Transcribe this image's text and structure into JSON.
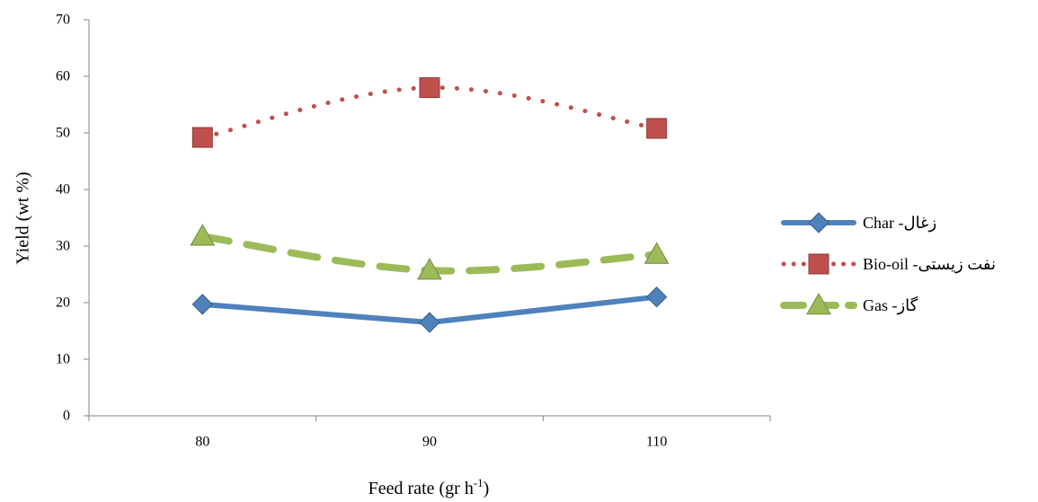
{
  "chart_data": {
    "type": "line",
    "categories": [
      "80",
      "90",
      "110"
    ],
    "xlabel_main": "Feed rate (gr h",
    "xlabel_sup": "-1",
    "xlabel_close": ")",
    "ylabel": "Yield (wt %)",
    "ylim": [
      0,
      70
    ],
    "yticks": [
      "0",
      "10",
      "20",
      "30",
      "40",
      "50",
      "60",
      "70"
    ],
    "grid": false,
    "legend_position": "right",
    "series": [
      {
        "name": "زغال- Char",
        "values": [
          19.7,
          16.5,
          21.0
        ],
        "color": "#4f81bd",
        "line_style": "solid",
        "marker": "diamond"
      },
      {
        "name": "نفت زیستی- Bio-oil",
        "values": [
          49.2,
          58.0,
          50.8
        ],
        "color": "#c0504d",
        "line_style": "dotted",
        "marker": "square"
      },
      {
        "name": "گاز- Gas",
        "values": [
          31.7,
          25.7,
          28.5
        ],
        "color": "#9bbb59",
        "line_style": "dashed",
        "marker": "triangle"
      }
    ]
  }
}
